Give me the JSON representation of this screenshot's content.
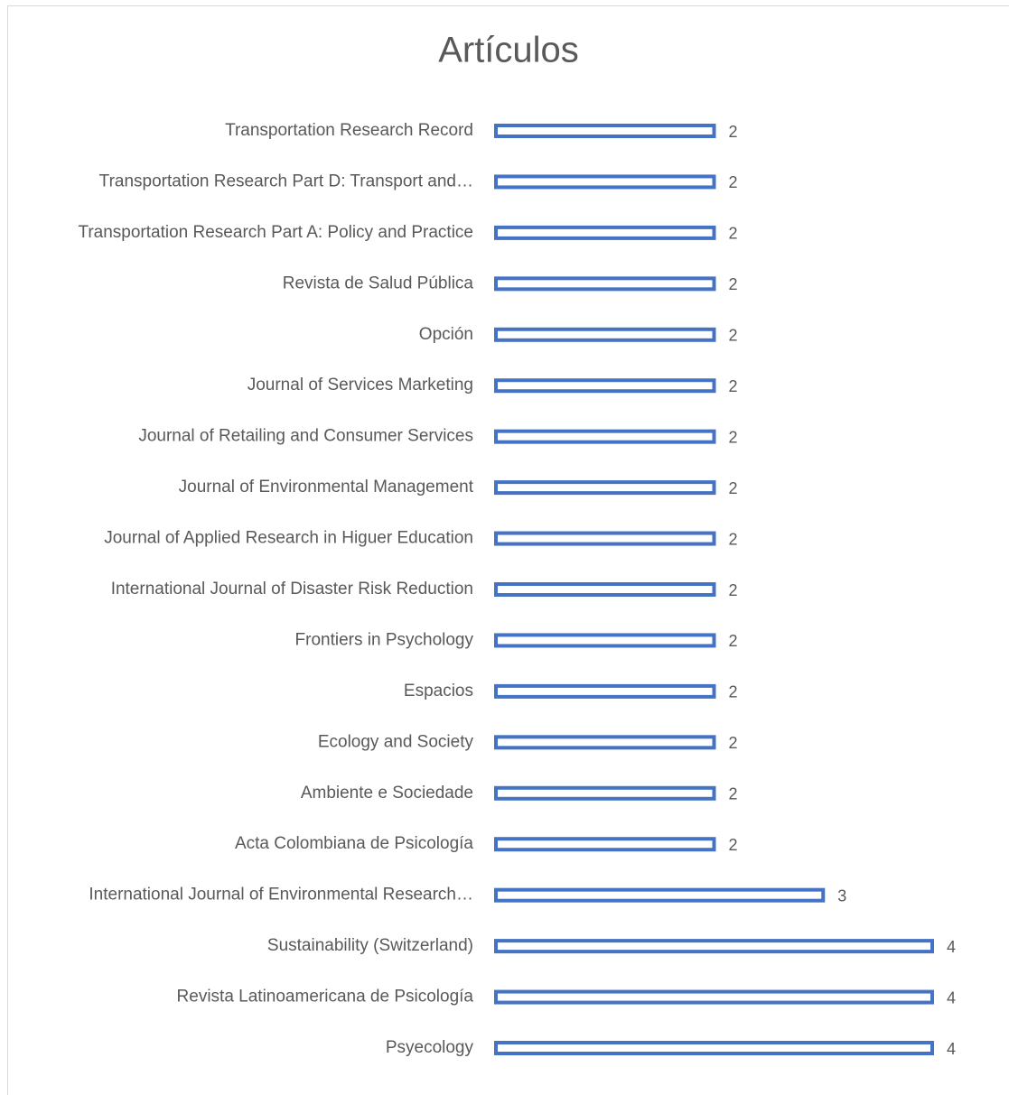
{
  "chart_data": {
    "type": "bar",
    "orientation": "horizontal",
    "title": "Artículos",
    "categories": [
      "Transportation Research Record",
      "Transportation Research Part D: Transport and…",
      "Transportation Research Part A: Policy and Practice",
      "Revista de Salud Pública",
      "Opción",
      "Journal of Services Marketing",
      "Journal of Retailing and Consumer Services",
      "Journal of Environmental Management",
      "Journal of Applied Research in Higuer Education",
      "International Journal of Disaster Risk Reduction",
      "Frontiers in Psychology",
      "Espacios",
      "Ecology and Society",
      "Ambiente e Sociedade",
      "Acta Colombiana de Psicología",
      "International Journal of Environmental Research…",
      "Sustainability (Switzerland)",
      "Revista Latinoamericana de Psicología",
      "Psyecology"
    ],
    "values": [
      2,
      2,
      2,
      2,
      2,
      2,
      2,
      2,
      2,
      2,
      2,
      2,
      2,
      2,
      2,
      3,
      4,
      4,
      4
    ],
    "color": "#4472c4"
  }
}
